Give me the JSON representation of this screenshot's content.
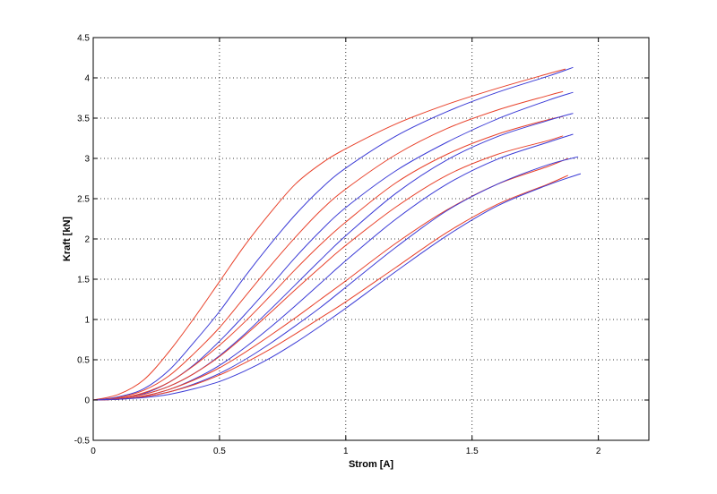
{
  "chart_data": {
    "type": "line",
    "title": "",
    "xlabel": "Strom [A]",
    "ylabel": "Kraft [kN]",
    "xlim": [
      0,
      2.2
    ],
    "ylim": [
      -0.5,
      4.5
    ],
    "xticks": [
      0,
      0.5,
      1,
      1.5,
      2
    ],
    "xtick_labels": [
      "0",
      "0.5",
      "1",
      "1.5",
      "2"
    ],
    "yticks": [
      -0.5,
      0,
      0.5,
      1,
      1.5,
      2,
      2.5,
      3,
      3.5,
      4,
      4.5
    ],
    "ytick_labels": [
      "-0.5",
      "0",
      "0.5",
      "1",
      "1.5",
      "2",
      "2.5",
      "3",
      "3.5",
      "4",
      "4.5"
    ],
    "grid": true,
    "legend": "none",
    "series_colors": {
      "red": "#e8412a",
      "blue": "#3b3bd6"
    },
    "series": [
      {
        "color": "red",
        "x": [
          0,
          0.1,
          0.2,
          0.3,
          0.4,
          0.5,
          0.6,
          0.7,
          0.8,
          0.9,
          1.0,
          1.2,
          1.4,
          1.6,
          1.8,
          1.87
        ],
        "values": [
          0,
          0.07,
          0.25,
          0.6,
          1.02,
          1.47,
          1.92,
          2.32,
          2.68,
          2.93,
          3.12,
          3.43,
          3.67,
          3.87,
          4.05,
          4.11
        ]
      },
      {
        "color": "blue",
        "x": [
          0,
          0.1,
          0.2,
          0.3,
          0.4,
          0.5,
          0.6,
          0.7,
          0.8,
          0.9,
          1.0,
          1.2,
          1.4,
          1.6,
          1.8,
          1.9
        ],
        "values": [
          0,
          0.04,
          0.14,
          0.37,
          0.72,
          1.1,
          1.53,
          1.93,
          2.3,
          2.62,
          2.88,
          3.28,
          3.58,
          3.82,
          4.02,
          4.13
        ]
      },
      {
        "color": "red",
        "x": [
          0,
          0.1,
          0.2,
          0.3,
          0.4,
          0.5,
          0.6,
          0.7,
          0.8,
          0.9,
          1.0,
          1.2,
          1.4,
          1.6,
          1.8,
          1.86
        ],
        "values": [
          0,
          0.03,
          0.12,
          0.3,
          0.58,
          0.9,
          1.28,
          1.66,
          2.02,
          2.35,
          2.62,
          3.05,
          3.37,
          3.6,
          3.78,
          3.83
        ]
      },
      {
        "color": "blue",
        "x": [
          0,
          0.1,
          0.2,
          0.3,
          0.4,
          0.5,
          0.6,
          0.7,
          0.8,
          0.9,
          1.0,
          1.2,
          1.4,
          1.6,
          1.8,
          1.9
        ],
        "values": [
          0,
          0.02,
          0.08,
          0.22,
          0.44,
          0.73,
          1.06,
          1.41,
          1.77,
          2.1,
          2.39,
          2.85,
          3.2,
          3.49,
          3.72,
          3.82
        ]
      },
      {
        "color": "red",
        "x": [
          0,
          0.1,
          0.2,
          0.3,
          0.4,
          0.5,
          0.6,
          0.7,
          0.8,
          0.9,
          1.0,
          1.2,
          1.4,
          1.6,
          1.8,
          1.86
        ],
        "values": [
          0,
          0.02,
          0.09,
          0.22,
          0.43,
          0.68,
          0.97,
          1.29,
          1.62,
          1.93,
          2.21,
          2.7,
          3.05,
          3.3,
          3.48,
          3.52
        ]
      },
      {
        "color": "blue",
        "x": [
          0,
          0.1,
          0.2,
          0.3,
          0.4,
          0.5,
          0.6,
          0.7,
          0.8,
          0.9,
          1.0,
          1.2,
          1.4,
          1.6,
          1.8,
          1.9
        ],
        "values": [
          0,
          0.02,
          0.07,
          0.17,
          0.33,
          0.55,
          0.82,
          1.12,
          1.43,
          1.74,
          2.04,
          2.57,
          2.98,
          3.27,
          3.47,
          3.56
        ]
      },
      {
        "color": "red",
        "x": [
          0,
          0.1,
          0.2,
          0.3,
          0.4,
          0.5,
          0.6,
          0.7,
          0.8,
          0.9,
          1.0,
          1.2,
          1.4,
          1.6,
          1.8,
          1.86
        ],
        "values": [
          0,
          0.02,
          0.07,
          0.17,
          0.33,
          0.54,
          0.8,
          1.08,
          1.37,
          1.65,
          1.92,
          2.4,
          2.79,
          3.05,
          3.22,
          3.28
        ]
      },
      {
        "color": "blue",
        "x": [
          0,
          0.1,
          0.2,
          0.3,
          0.4,
          0.5,
          0.6,
          0.7,
          0.8,
          0.9,
          1.0,
          1.2,
          1.4,
          1.6,
          1.8,
          1.9
        ],
        "values": [
          0,
          0.01,
          0.05,
          0.13,
          0.26,
          0.43,
          0.65,
          0.9,
          1.17,
          1.45,
          1.73,
          2.25,
          2.68,
          2.99,
          3.2,
          3.3
        ]
      },
      {
        "color": "red",
        "x": [
          0,
          0.1,
          0.2,
          0.3,
          0.4,
          0.5,
          0.6,
          0.7,
          0.8,
          0.9,
          1.0,
          1.2,
          1.4,
          1.6,
          1.8,
          1.88
        ],
        "values": [
          0,
          0.01,
          0.05,
          0.13,
          0.25,
          0.4,
          0.59,
          0.8,
          1.02,
          1.25,
          1.48,
          1.95,
          2.36,
          2.68,
          2.9,
          3.0
        ]
      },
      {
        "color": "blue",
        "x": [
          0,
          0.1,
          0.2,
          0.3,
          0.4,
          0.5,
          0.6,
          0.7,
          0.8,
          0.9,
          1.0,
          1.2,
          1.4,
          1.6,
          1.8,
          1.92
        ],
        "values": [
          0,
          0.01,
          0.04,
          0.1,
          0.2,
          0.33,
          0.5,
          0.7,
          0.92,
          1.15,
          1.4,
          1.9,
          2.35,
          2.68,
          2.92,
          3.02
        ]
      },
      {
        "color": "red",
        "x": [
          0,
          0.1,
          0.2,
          0.3,
          0.4,
          0.5,
          0.6,
          0.7,
          0.8,
          0.9,
          1.0,
          1.2,
          1.4,
          1.6,
          1.8,
          1.88
        ],
        "values": [
          0,
          0.01,
          0.04,
          0.1,
          0.19,
          0.31,
          0.46,
          0.63,
          0.82,
          1.02,
          1.22,
          1.65,
          2.08,
          2.43,
          2.68,
          2.79
        ]
      },
      {
        "color": "blue",
        "x": [
          0,
          0.1,
          0.2,
          0.3,
          0.4,
          0.5,
          0.6,
          0.7,
          0.8,
          0.9,
          1.0,
          1.2,
          1.4,
          1.6,
          1.8,
          1.93
        ],
        "values": [
          0,
          0.01,
          0.03,
          0.07,
          0.14,
          0.23,
          0.36,
          0.52,
          0.71,
          0.92,
          1.14,
          1.6,
          2.04,
          2.41,
          2.67,
          2.81
        ]
      }
    ]
  }
}
